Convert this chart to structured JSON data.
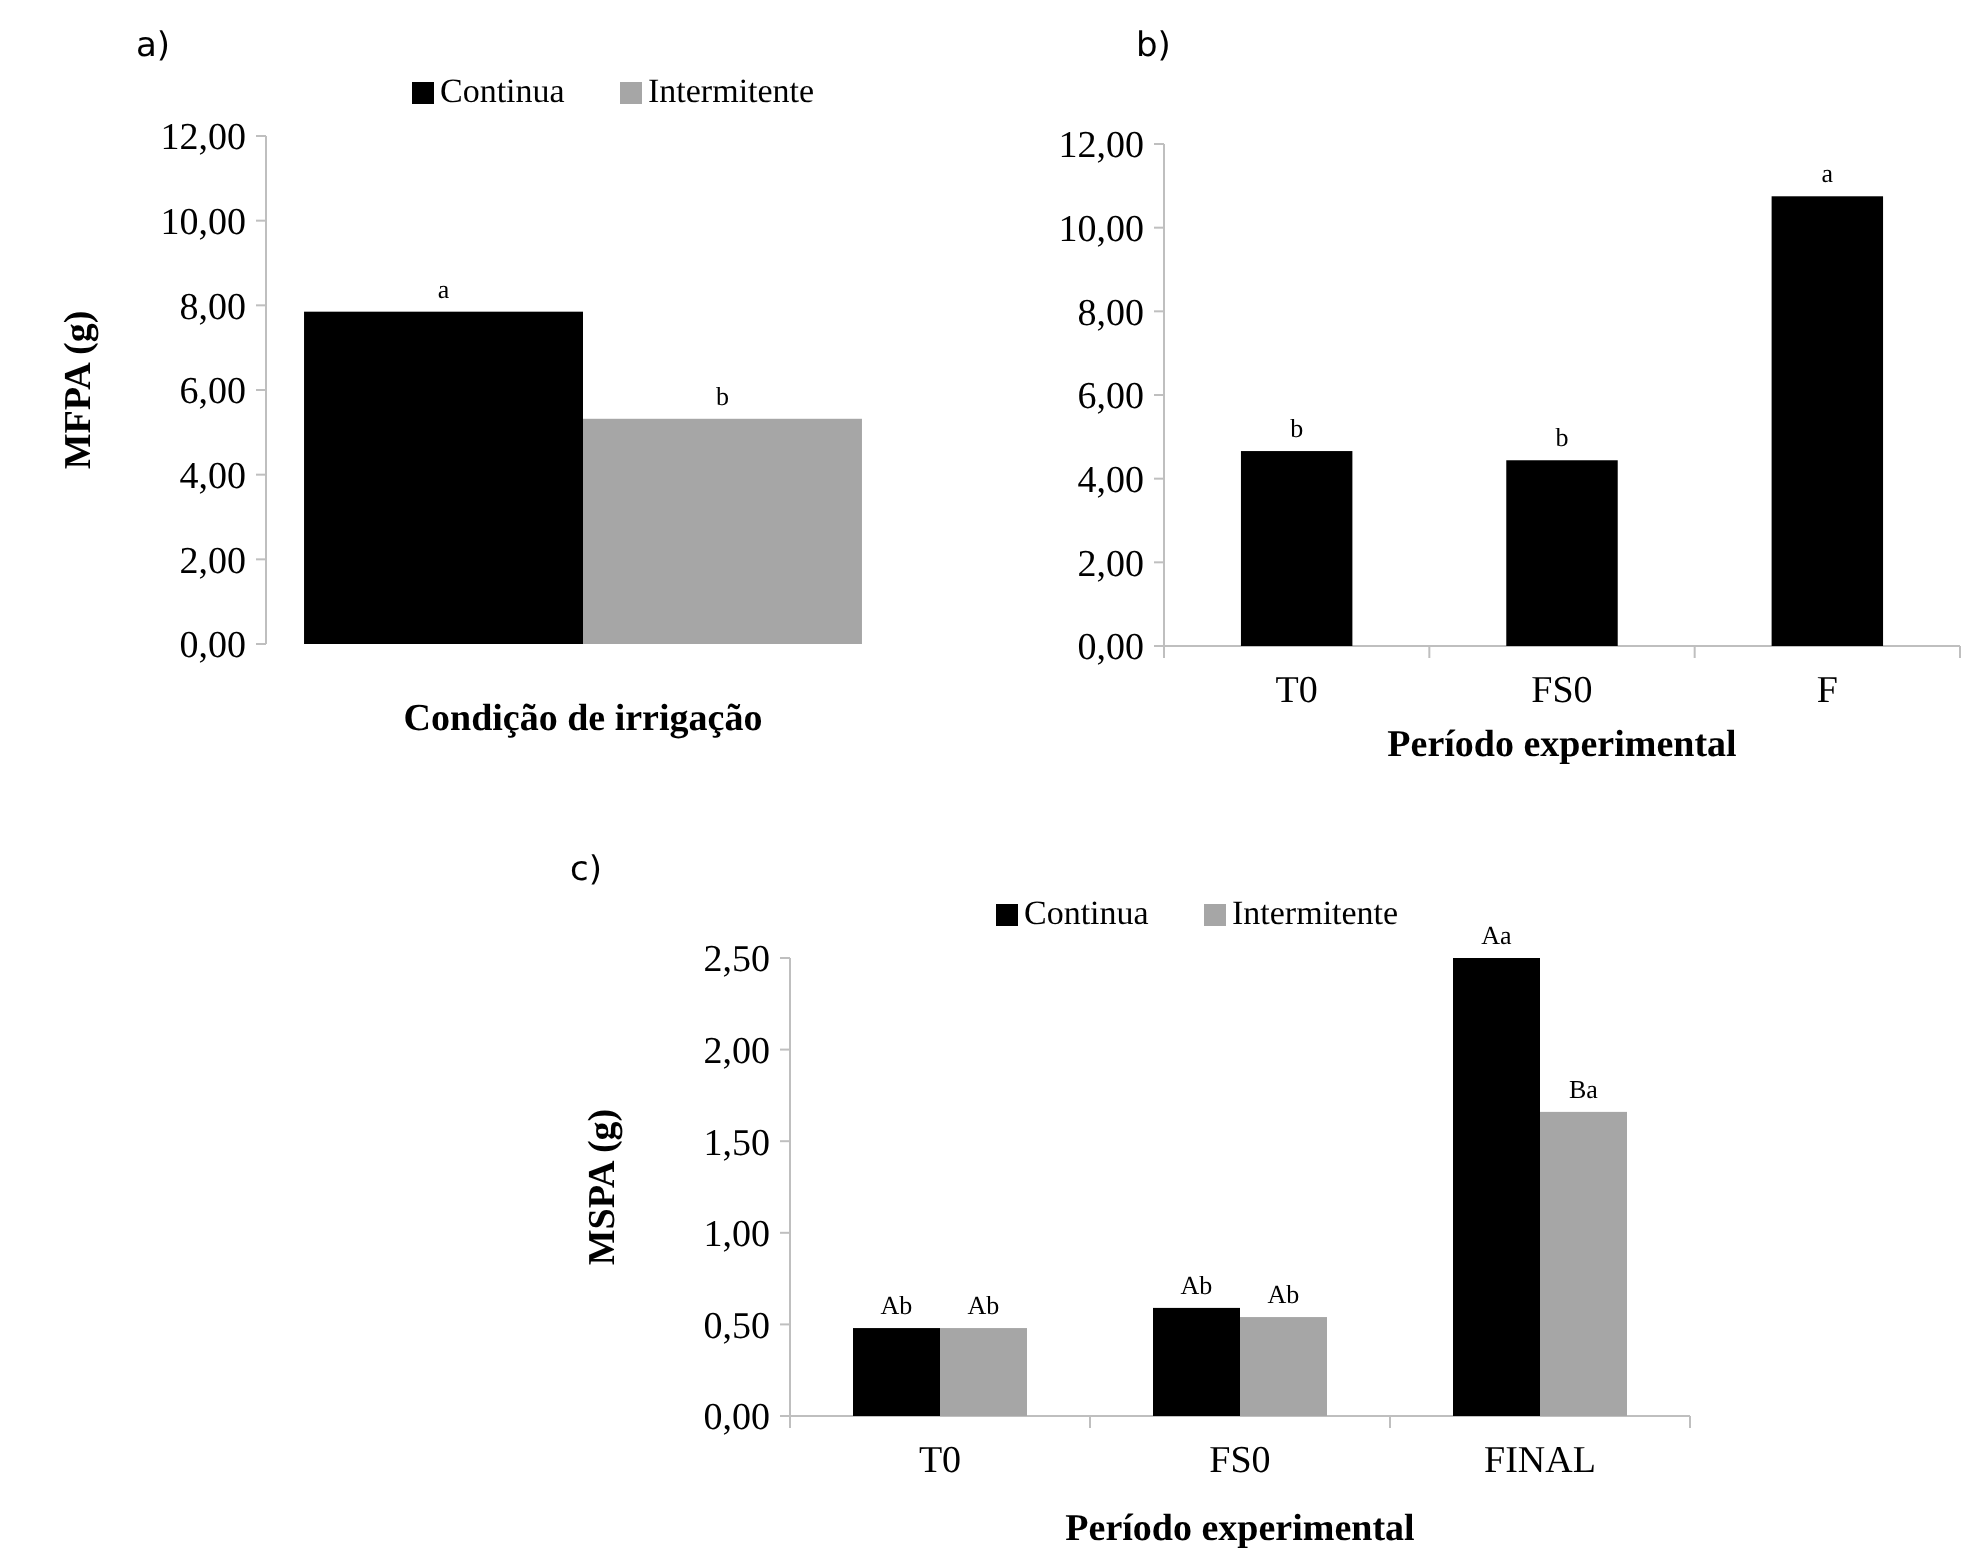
{
  "chart_data": [
    {
      "type": "bar",
      "title": "a)",
      "ylabel": "MFPA (g)",
      "xlabel": "Condição de irrigação",
      "categories": [
        null
      ],
      "ylim": [
        0,
        12
      ],
      "yticks": [
        {
          "value": 0,
          "label": "0,00"
        },
        {
          "value": 2,
          "label": "2,00"
        },
        {
          "value": 4,
          "label": "4,00"
        },
        {
          "value": 6,
          "label": "6,00"
        },
        {
          "value": 8,
          "label": "8,00"
        },
        {
          "value": 10,
          "label": "10,00"
        },
        {
          "value": 12,
          "label": "12,00"
        }
      ],
      "legend": "top right",
      "grid": false,
      "series": [
        {
          "name": "Continua",
          "color": "#000000",
          "values": [
            7.85
          ],
          "value_labels": [
            "a"
          ]
        },
        {
          "name": "Intermitente",
          "color": "#a6a6a6",
          "values": [
            5.32
          ],
          "value_labels": [
            "b"
          ]
        }
      ]
    },
    {
      "type": "bar",
      "title": "b)",
      "xlabel": "Período experimental",
      "categories": [
        "T0",
        "FS0",
        "F"
      ],
      "ylim": [
        0,
        12
      ],
      "yticks": [
        {
          "value": 0,
          "label": "0,00"
        },
        {
          "value": 2,
          "label": "2,00"
        },
        {
          "value": 4,
          "label": "4,00"
        },
        {
          "value": 6,
          "label": "6,00"
        },
        {
          "value": 8,
          "label": "8,00"
        },
        {
          "value": 10,
          "label": "10,00"
        },
        {
          "value": 12,
          "label": "12,00"
        }
      ],
      "legend": false,
      "grid": false,
      "series": [
        {
          "color": "#000000",
          "values": [
            4.66,
            4.44,
            10.75
          ],
          "value_labels": [
            "b",
            "b",
            "a"
          ]
        }
      ]
    },
    {
      "type": "bar",
      "title": "c)",
      "ylabel": "MSPA (g)",
      "xlabel": "Período experimental",
      "categories": [
        "T0",
        "FS0",
        "FINAL"
      ],
      "ylim": [
        0,
        2.5
      ],
      "yticks": [
        {
          "value": 0,
          "label": "0,00"
        },
        {
          "value": 0.5,
          "label": "0,50"
        },
        {
          "value": 1,
          "label": "1,00"
        },
        {
          "value": 1.5,
          "label": "1,50"
        },
        {
          "value": 2,
          "label": "2,00"
        },
        {
          "value": 2.5,
          "label": "2,50"
        }
      ],
      "legend": "top",
      "grid": false,
      "series": [
        {
          "name": "Continua",
          "color": "#000000",
          "values": [
            0.48,
            0.59,
            2.5
          ],
          "value_labels": [
            "Ab",
            "Ab",
            "Aa"
          ]
        },
        {
          "name": "Intermitente",
          "color": "#a6a6a6",
          "values": [
            0.48,
            0.54,
            1.66
          ],
          "value_labels": [
            "Ab",
            "Ab",
            "Ba"
          ]
        }
      ]
    }
  ]
}
